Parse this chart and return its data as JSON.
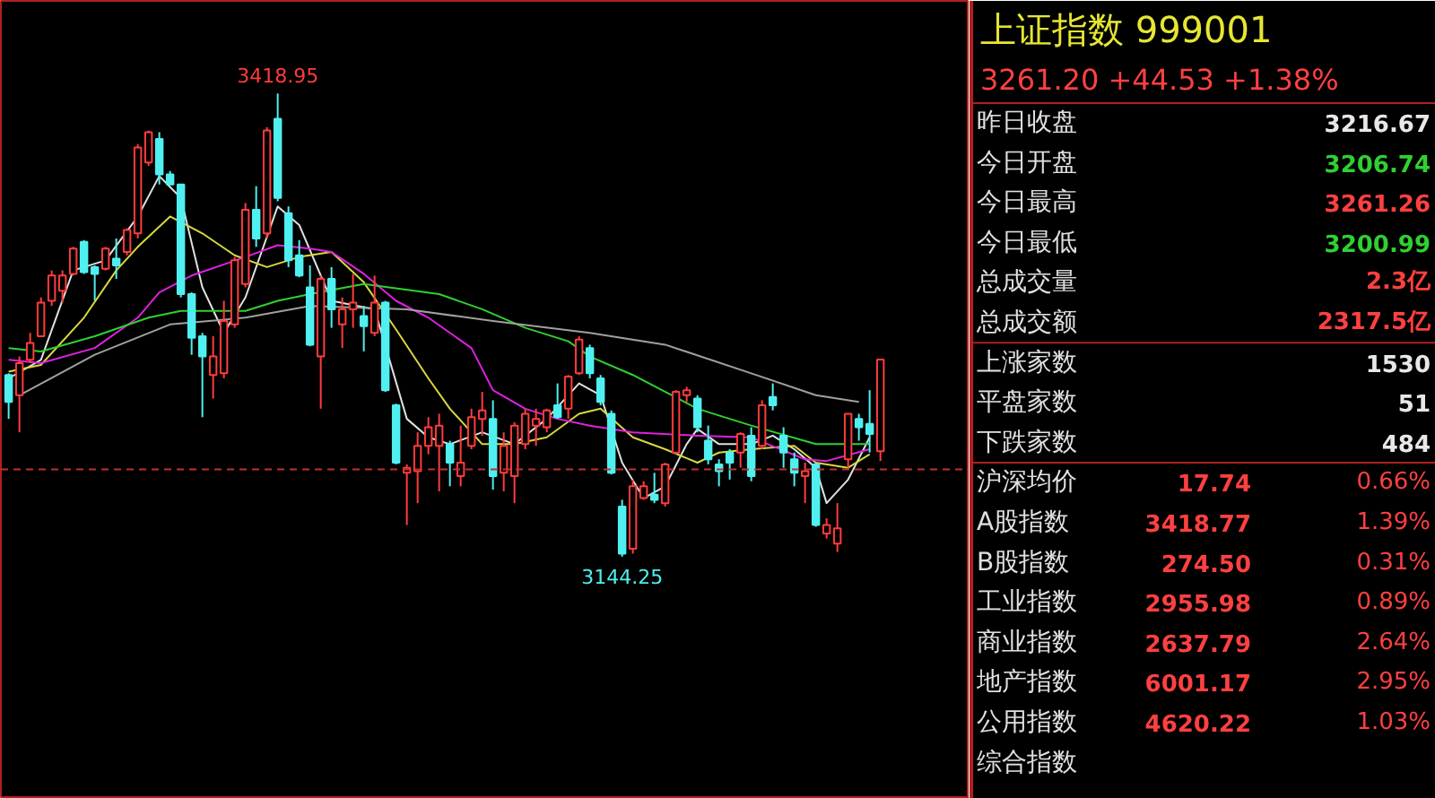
{
  "chart_data": [
    {
      "type": "candlestick",
      "tick_labels": false,
      "categories": [
        null,
        null,
        null,
        null,
        null,
        null,
        null,
        null,
        null,
        null,
        null,
        null,
        null,
        null,
        null,
        null,
        null,
        null,
        null,
        null,
        null,
        null,
        null,
        null,
        null,
        null,
        null,
        null,
        null,
        null,
        null,
        null,
        null,
        null,
        null,
        null,
        null,
        null,
        null,
        null,
        null,
        null,
        null,
        null,
        null,
        null,
        null,
        null,
        null,
        null,
        null,
        null,
        null,
        null,
        null,
        null,
        null,
        null,
        null,
        null,
        null,
        null,
        null,
        null,
        null,
        null,
        null,
        null,
        null,
        null,
        null,
        null,
        null,
        null,
        null,
        null,
        null,
        null,
        null,
        null,
        null,
        null
      ],
      "ohlc": [
        [
          3252,
          3253,
          3226,
          3236
        ],
        [
          3240,
          3263,
          3218,
          3259
        ],
        [
          3261,
          3277,
          3259,
          3271
        ],
        [
          3275,
          3298,
          3275,
          3295
        ],
        [
          3296,
          3314,
          3293,
          3311
        ],
        [
          3302,
          3314,
          3295,
          3311
        ],
        [
          3312,
          3328,
          3311,
          3327
        ],
        [
          3331,
          3332,
          3312,
          3313
        ],
        [
          3316,
          3317,
          3296,
          3312
        ],
        [
          3315,
          3328,
          3314,
          3327
        ],
        [
          3321,
          3333,
          3309,
          3317
        ],
        [
          3325,
          3339,
          3323,
          3338
        ],
        [
          3336,
          3389,
          3333,
          3387
        ],
        [
          3378,
          3397,
          3376,
          3396
        ],
        [
          3392,
          3396,
          3365,
          3371
        ],
        [
          3371,
          3373,
          3365,
          3365
        ],
        [
          3365,
          3365,
          3298,
          3300
        ],
        [
          3300,
          3301,
          3264,
          3274
        ],
        [
          3275,
          3277,
          3227,
          3263
        ],
        [
          3252,
          3275,
          3238,
          3263
        ],
        [
          3253,
          3296,
          3250,
          3284
        ],
        [
          3282,
          3322,
          3280,
          3320
        ],
        [
          3306,
          3354,
          3304,
          3350
        ],
        [
          3350,
          3364,
          3328,
          3333
        ],
        [
          3336,
          3399,
          3333,
          3397
        ],
        [
          3404,
          3418.95,
          3355,
          3357
        ],
        [
          3348,
          3352,
          3316,
          3320
        ],
        [
          3323,
          3332,
          3310,
          3311
        ],
        [
          3304,
          3317,
          3269,
          3270
        ],
        [
          3263,
          3311,
          3232,
          3309
        ],
        [
          3309,
          3316,
          3280,
          3291
        ],
        [
          3282,
          3298,
          3268,
          3291
        ],
        [
          3291,
          3312,
          3280,
          3295
        ],
        [
          3287,
          3293,
          3266,
          3281
        ],
        [
          3277,
          3311,
          3275,
          3295
        ],
        [
          3295,
          3296,
          3242,
          3243
        ],
        [
          3234,
          3235,
          3199,
          3200
        ],
        [
          3194,
          3199,
          3163,
          3197
        ],
        [
          3195,
          3218,
          3176,
          3210
        ],
        [
          3210,
          3227,
          3205,
          3221
        ],
        [
          3210,
          3229,
          3183,
          3222
        ],
        [
          3211,
          3213,
          3186,
          3200
        ],
        [
          3192,
          3222,
          3186,
          3200
        ],
        [
          3210,
          3232,
          3208,
          3227
        ],
        [
          3226,
          3242,
          3216,
          3231
        ],
        [
          3226,
          3237,
          3184,
          3192
        ],
        [
          3194,
          3218,
          3183,
          3210
        ],
        [
          3192,
          3224,
          3176,
          3222
        ],
        [
          3211,
          3232,
          3208,
          3229
        ],
        [
          3222,
          3232,
          3210,
          3226
        ],
        [
          3221,
          3232,
          3218,
          3231
        ],
        [
          3234,
          3247,
          3226,
          3227
        ],
        [
          3232,
          3252,
          3226,
          3251
        ],
        [
          3253,
          3275,
          3252,
          3273
        ],
        [
          3268,
          3270,
          3250,
          3253
        ],
        [
          3250,
          3252,
          3234,
          3236
        ],
        [
          3229,
          3231,
          3193,
          3194
        ],
        [
          3174,
          3178,
          3144.25,
          3146
        ],
        [
          3149,
          3190,
          3146,
          3186
        ],
        [
          3179,
          3189,
          3178,
          3186
        ],
        [
          3181,
          3194,
          3176,
          3178
        ],
        [
          3176,
          3200,
          3174,
          3199
        ],
        [
          3206,
          3243,
          3205,
          3242
        ],
        [
          3240,
          3245,
          3236,
          3243
        ],
        [
          3238,
          3240,
          3218,
          3221
        ],
        [
          3213,
          3222,
          3199,
          3202
        ],
        [
          3199,
          3202,
          3186,
          3195
        ],
        [
          3206,
          3208,
          3190,
          3200
        ],
        [
          3206,
          3218,
          3197,
          3217
        ],
        [
          3216,
          3221,
          3189,
          3192
        ],
        [
          3210,
          3237,
          3208,
          3234
        ],
        [
          3239,
          3247,
          3231,
          3234
        ],
        [
          3216,
          3221,
          3197,
          3206
        ],
        [
          3202,
          3206,
          3186,
          3194
        ],
        [
          3192,
          3200,
          3176,
          3195
        ],
        [
          3199,
          3200,
          3162,
          3163
        ],
        [
          3158,
          3167,
          3155,
          3163
        ],
        [
          3152,
          3176,
          3147,
          3161
        ],
        [
          3202,
          3229,
          3197,
          3229
        ],
        [
          3226,
          3229,
          3213,
          3221
        ],
        [
          3223,
          3243,
          3206,
          3217
        ],
        [
          3206.74,
          3261.26,
          3200.99,
          3261.2
        ]
      ],
      "series": [
        {
          "type": "line",
          "color": "#e0e0e0",
          "values": [
            3250,
            null,
            null,
            3261,
            null,
            null,
            3314,
            null,
            null,
            3320,
            null,
            null,
            3346,
            null,
            3370,
            null,
            3357,
            null,
            3304,
            null,
            3277,
            null,
            3298,
            null,
            null,
            3352,
            null,
            3341,
            null,
            null,
            3296,
            null,
            null,
            null,
            3291,
            null,
            null,
            3226,
            null,
            3215,
            null,
            3211,
            null,
            null,
            3218,
            null,
            null,
            3211,
            null,
            null,
            3226,
            null,
            null,
            3247,
            null,
            3240,
            null,
            3200,
            null,
            3179,
            null,
            3186,
            null,
            3211,
            3220,
            null,
            3211,
            null,
            null,
            3211,
            null,
            3216,
            null,
            3208,
            null,
            3197,
            3176,
            null,
            3190,
            null,
            3215,
            null
          ]
        },
        {
          "type": "line",
          "color": "#d8d840",
          "values": [
            3254,
            null,
            null,
            3258,
            null,
            null,
            null,
            3286,
            null,
            null,
            3314,
            null,
            3328,
            null,
            null,
            3346,
            null,
            null,
            3336,
            null,
            null,
            3323,
            null,
            null,
            3316,
            null,
            null,
            3322,
            null,
            null,
            3325,
            null,
            null,
            3307,
            null,
            null,
            3279,
            null,
            null,
            3250,
            null,
            3232,
            null,
            null,
            3211,
            null,
            null,
            3211,
            null,
            null,
            3215,
            null,
            null,
            3229,
            null,
            3232,
            null,
            null,
            3215,
            null,
            null,
            3208,
            null,
            null,
            3200,
            null,
            3206,
            null,
            null,
            3208,
            null,
            null,
            null,
            3210,
            null,
            3200,
            null,
            null,
            3197,
            null,
            3205,
            null
          ]
        },
        {
          "type": "line",
          "color": "#e020e0",
          "values": [
            3261,
            null,
            null,
            3259,
            null,
            null,
            null,
            null,
            3268,
            null,
            null,
            null,
            3286,
            null,
            3301,
            null,
            null,
            3311,
            null,
            null,
            null,
            null,
            3322,
            null,
            null,
            3329,
            null,
            null,
            3327,
            null,
            3325,
            null,
            null,
            3312,
            null,
            null,
            3296,
            null,
            null,
            3286,
            null,
            null,
            null,
            3268,
            null,
            3243,
            null,
            null,
            3232,
            null,
            null,
            3226,
            null,
            null,
            3222,
            null,
            null,
            null,
            3218,
            null,
            null,
            null,
            null,
            null,
            3216,
            null,
            null,
            null,
            null,
            3215,
            null,
            null,
            null,
            null,
            3202,
            null,
            3201,
            null,
            null,
            null,
            3208,
            null
          ]
        },
        {
          "type": "line",
          "color": "#30d030",
          "values": [
            3268,
            null,
            null,
            3266,
            null,
            null,
            null,
            null,
            3275,
            null,
            null,
            null,
            null,
            3286,
            null,
            null,
            3290,
            null,
            null,
            null,
            null,
            null,
            3290,
            null,
            null,
            3296,
            null,
            null,
            3300,
            null,
            null,
            null,
            null,
            3306,
            null,
            null,
            null,
            null,
            null,
            null,
            3300,
            null,
            null,
            null,
            3291,
            null,
            null,
            null,
            3280,
            null,
            null,
            null,
            3272,
            null,
            3263,
            null,
            null,
            null,
            3252,
            null,
            null,
            null,
            null,
            null,
            3232,
            null,
            null,
            null,
            null,
            3222,
            null,
            null,
            null,
            null,
            null,
            3211,
            null,
            null,
            null,
            null,
            3211,
            null
          ]
        },
        {
          "type": "line",
          "color": "#a0a0a0",
          "values": [
            null,
            3240,
            null,
            null,
            null,
            null,
            null,
            null,
            3264,
            null,
            null,
            null,
            null,
            null,
            null,
            3282,
            null,
            null,
            null,
            null,
            null,
            null,
            3286,
            null,
            null,
            null,
            null,
            null,
            3293,
            null,
            null,
            null,
            null,
            null,
            null,
            null,
            null,
            3291,
            null,
            null,
            null,
            null,
            null,
            null,
            null,
            3284,
            null,
            null,
            null,
            null,
            null,
            null,
            null,
            null,
            3277,
            null,
            null,
            null,
            null,
            null,
            null,
            3270,
            null,
            null,
            null,
            null,
            null,
            null,
            null,
            3253,
            null,
            null,
            null,
            null,
            null,
            3240,
            null,
            null,
            null,
            3236,
            null,
            null
          ]
        }
      ],
      "ref_lines": [
        {
          "axis": "y",
          "value": 3196,
          "color": "#c03030",
          "line_style": "dashed"
        }
      ],
      "annotations": [
        {
          "text": "3418.95",
          "y": 3418.95
        },
        {
          "text": "3144.25",
          "y": 3144.25
        }
      ]
    },
    {
      "type": "other",
      "title": "上证指数  999001",
      "subtitle": "3261.20  +44.53  +1.38%",
      "categories": [
        "昨日收盘",
        "今日开盘",
        "今日最高",
        "今日最低",
        "总成交量",
        "总成交额",
        "上涨家数",
        "平盘家数",
        "下跌家数",
        "沪深均价",
        "A股指数",
        "B股指数",
        "工业指数",
        "商业指数",
        "地产指数",
        "公用指数",
        "综合指数"
      ],
      "value_labels": [
        "3216.67",
        "3206.74",
        "3261.26",
        "3200.99",
        "2.3亿",
        "2317.5亿",
        "1530",
        "51",
        "484",
        "17.74",
        "3418.77",
        "274.50",
        "2955.98",
        "2637.79",
        "6001.17",
        "4620.22",
        null
      ],
      "annotations": [
        null,
        null,
        null,
        null,
        null,
        null,
        null,
        null,
        null,
        "0.66%",
        "1.39%",
        "0.31%",
        "0.89%",
        "2.64%",
        "2.95%",
        "1.03%",
        null
      ]
    }
  ]
}
